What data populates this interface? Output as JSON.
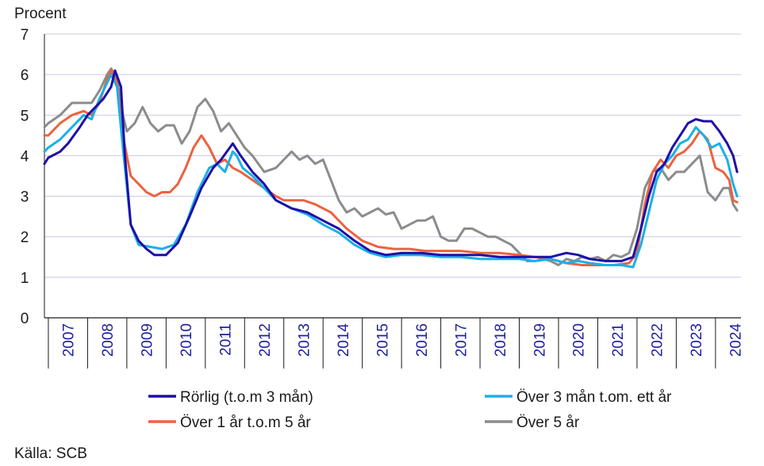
{
  "chart_data": {
    "type": "line",
    "ylabel": "Procent",
    "ylim": [
      0,
      7
    ],
    "yticks": [
      "0",
      "1",
      "2",
      "3",
      "4",
      "5",
      "6",
      "7"
    ],
    "xlim": [
      2006.9,
      2024.65
    ],
    "categories": [
      "2007",
      "2008",
      "2009",
      "2010",
      "2011",
      "2012",
      "2013",
      "2014",
      "2015",
      "2016",
      "2017",
      "2018",
      "2019",
      "2020",
      "2021",
      "2022",
      "2023",
      "2024"
    ],
    "grid": true,
    "legend_position": "bottom",
    "source": "Källa: SCB",
    "series": [
      {
        "name": "Rörlig (t.o.m 3 mån)",
        "color": "#1e0fa8",
        "x": [
          2006.9,
          2007.0,
          2007.3,
          2007.5,
          2007.8,
          2008.0,
          2008.2,
          2008.4,
          2008.6,
          2008.7,
          2008.85,
          2008.95,
          2009.1,
          2009.3,
          2009.5,
          2009.7,
          2010.0,
          2010.3,
          2010.6,
          2010.9,
          2011.2,
          2011.4,
          2011.55,
          2011.7,
          2011.9,
          2012.2,
          2012.5,
          2012.8,
          2013.2,
          2013.6,
          2014.0,
          2014.4,
          2014.8,
          2015.2,
          2015.6,
          2016.0,
          2016.5,
          2017.0,
          2017.5,
          2018.0,
          2018.5,
          2019.0,
          2019.5,
          2019.8,
          2020.2,
          2020.5,
          2020.8,
          2021.2,
          2021.6,
          2021.9,
          2022.1,
          2022.3,
          2022.5,
          2022.7,
          2022.9,
          2023.1,
          2023.3,
          2023.5,
          2023.7,
          2023.9,
          2024.1,
          2024.3,
          2024.45,
          2024.55
        ],
        "y": [
          3.8,
          3.95,
          4.1,
          4.3,
          4.7,
          5.0,
          5.2,
          5.4,
          5.7,
          6.1,
          5.7,
          4.0,
          2.3,
          1.9,
          1.7,
          1.55,
          1.55,
          1.85,
          2.5,
          3.2,
          3.7,
          3.9,
          4.1,
          4.3,
          4.0,
          3.6,
          3.3,
          2.9,
          2.7,
          2.6,
          2.4,
          2.2,
          1.9,
          1.65,
          1.55,
          1.6,
          1.6,
          1.55,
          1.55,
          1.55,
          1.5,
          1.5,
          1.5,
          1.5,
          1.6,
          1.55,
          1.45,
          1.4,
          1.4,
          1.5,
          2.2,
          3.0,
          3.6,
          3.8,
          4.2,
          4.5,
          4.8,
          4.9,
          4.85,
          4.85,
          4.6,
          4.3,
          4.0,
          3.6
        ]
      },
      {
        "name": "Över 3 mån t.om. ett år",
        "color": "#1ab0e8",
        "x": [
          2006.9,
          2007.0,
          2007.3,
          2007.6,
          2007.9,
          2008.1,
          2008.3,
          2008.5,
          2008.6,
          2008.75,
          2008.9,
          2009.1,
          2009.3,
          2009.6,
          2009.9,
          2010.2,
          2010.5,
          2010.8,
          2011.1,
          2011.3,
          2011.5,
          2011.7,
          2011.8,
          2011.95,
          2012.2,
          2012.5,
          2012.8,
          2013.2,
          2013.6,
          2014.0,
          2014.4,
          2014.8,
          2015.2,
          2015.6,
          2016.0,
          2016.5,
          2017.0,
          2017.5,
          2018.0,
          2018.5,
          2019.0,
          2019.4,
          2019.8,
          2020.2,
          2020.5,
          2020.8,
          2021.2,
          2021.6,
          2021.9,
          2022.1,
          2022.3,
          2022.5,
          2022.7,
          2022.9,
          2023.1,
          2023.3,
          2023.5,
          2023.7,
          2023.9,
          2024.1,
          2024.3,
          2024.45,
          2024.55
        ],
        "y": [
          4.1,
          4.2,
          4.4,
          4.7,
          5.0,
          4.9,
          5.4,
          5.8,
          6.0,
          5.7,
          4.2,
          2.3,
          1.8,
          1.75,
          1.7,
          1.8,
          2.3,
          3.1,
          3.7,
          3.8,
          3.6,
          4.1,
          4.0,
          3.7,
          3.5,
          3.2,
          2.9,
          2.7,
          2.55,
          2.3,
          2.1,
          1.8,
          1.6,
          1.5,
          1.55,
          1.55,
          1.5,
          1.5,
          1.45,
          1.45,
          1.45,
          1.4,
          1.45,
          1.35,
          1.4,
          1.35,
          1.3,
          1.3,
          1.25,
          1.8,
          2.6,
          3.4,
          3.8,
          4.0,
          4.3,
          4.4,
          4.7,
          4.5,
          4.2,
          4.3,
          3.9,
          3.3,
          3.0
        ]
      },
      {
        "name": "Över 1 år t.o.m 5 år",
        "color": "#ec6240",
        "x": [
          2006.9,
          2007.0,
          2007.3,
          2007.6,
          2007.9,
          2008.1,
          2008.3,
          2008.5,
          2008.6,
          2008.75,
          2008.9,
          2009.1,
          2009.3,
          2009.5,
          2009.7,
          2009.9,
          2010.1,
          2010.3,
          2010.5,
          2010.7,
          2010.9,
          2011.1,
          2011.3,
          2011.5,
          2011.7,
          2011.9,
          2012.2,
          2012.5,
          2012.8,
          2013.0,
          2013.2,
          2013.5,
          2013.8,
          2014.2,
          2014.6,
          2015.0,
          2015.4,
          2015.8,
          2016.2,
          2016.6,
          2017.0,
          2017.5,
          2018.0,
          2018.5,
          2019.0,
          2019.4,
          2019.8,
          2020.2,
          2020.6,
          2021.0,
          2021.4,
          2021.8,
          2022.0,
          2022.2,
          2022.4,
          2022.6,
          2022.8,
          2023.0,
          2023.2,
          2023.4,
          2023.6,
          2023.8,
          2024.0,
          2024.2,
          2024.35,
          2024.45,
          2024.55
        ],
        "y": [
          4.5,
          4.5,
          4.8,
          5.0,
          5.1,
          5.0,
          5.3,
          5.9,
          6.1,
          5.8,
          4.5,
          3.5,
          3.3,
          3.1,
          3.0,
          3.1,
          3.1,
          3.3,
          3.7,
          4.2,
          4.5,
          4.2,
          3.8,
          3.9,
          3.7,
          3.6,
          3.4,
          3.2,
          3.0,
          2.9,
          2.9,
          2.9,
          2.8,
          2.6,
          2.2,
          1.9,
          1.75,
          1.7,
          1.7,
          1.65,
          1.65,
          1.65,
          1.6,
          1.6,
          1.55,
          1.5,
          1.45,
          1.35,
          1.3,
          1.3,
          1.3,
          1.35,
          1.6,
          2.8,
          3.6,
          3.9,
          3.7,
          4.0,
          4.1,
          4.3,
          4.6,
          4.4,
          3.7,
          3.6,
          3.4,
          2.9,
          2.85
        ]
      },
      {
        "name": "Över 5 år",
        "color": "#8c8c8c",
        "x": [
          2006.9,
          2007.0,
          2007.3,
          2007.6,
          2007.9,
          2008.1,
          2008.3,
          2008.5,
          2008.6,
          2008.75,
          2008.9,
          2009.0,
          2009.2,
          2009.4,
          2009.6,
          2009.8,
          2010.0,
          2010.2,
          2010.4,
          2010.6,
          2010.8,
          2011.0,
          2011.2,
          2011.4,
          2011.6,
          2011.8,
          2012.0,
          2012.2,
          2012.5,
          2012.8,
          2013.0,
          2013.2,
          2013.4,
          2013.6,
          2013.8,
          2014.0,
          2014.2,
          2014.4,
          2014.6,
          2014.8,
          2015.0,
          2015.2,
          2015.4,
          2015.6,
          2015.8,
          2016.0,
          2016.2,
          2016.4,
          2016.6,
          2016.8,
          2017.0,
          2017.2,
          2017.4,
          2017.6,
          2017.8,
          2018.0,
          2018.2,
          2018.4,
          2018.6,
          2018.8,
          2019.0,
          2019.2,
          2019.4,
          2019.6,
          2019.8,
          2020.0,
          2020.2,
          2020.4,
          2020.6,
          2020.8,
          2021.0,
          2021.2,
          2021.4,
          2021.6,
          2021.8,
          2022.0,
          2022.2,
          2022.4,
          2022.6,
          2022.8,
          2023.0,
          2023.2,
          2023.4,
          2023.6,
          2023.8,
          2024.0,
          2024.2,
          2024.35,
          2024.45,
          2024.55
        ],
        "y": [
          4.7,
          4.8,
          5.0,
          5.3,
          5.3,
          5.3,
          5.6,
          6.0,
          6.15,
          5.9,
          5.0,
          4.6,
          4.8,
          5.2,
          4.8,
          4.6,
          4.75,
          4.75,
          4.3,
          4.6,
          5.2,
          5.4,
          5.1,
          4.6,
          4.8,
          4.5,
          4.2,
          4.0,
          3.6,
          3.7,
          3.9,
          4.1,
          3.9,
          4.0,
          3.8,
          3.9,
          3.4,
          2.9,
          2.6,
          2.7,
          2.5,
          2.6,
          2.7,
          2.55,
          2.6,
          2.2,
          2.3,
          2.4,
          2.4,
          2.5,
          2.0,
          1.9,
          1.9,
          2.2,
          2.2,
          2.1,
          2.0,
          2.0,
          1.9,
          1.8,
          1.6,
          1.4,
          1.4,
          1.45,
          1.4,
          1.3,
          1.45,
          1.4,
          1.5,
          1.45,
          1.5,
          1.4,
          1.55,
          1.5,
          1.6,
          2.2,
          3.2,
          3.6,
          3.7,
          3.4,
          3.6,
          3.6,
          3.8,
          4.0,
          3.1,
          2.9,
          3.2,
          3.2,
          2.8,
          2.65
        ]
      }
    ]
  }
}
